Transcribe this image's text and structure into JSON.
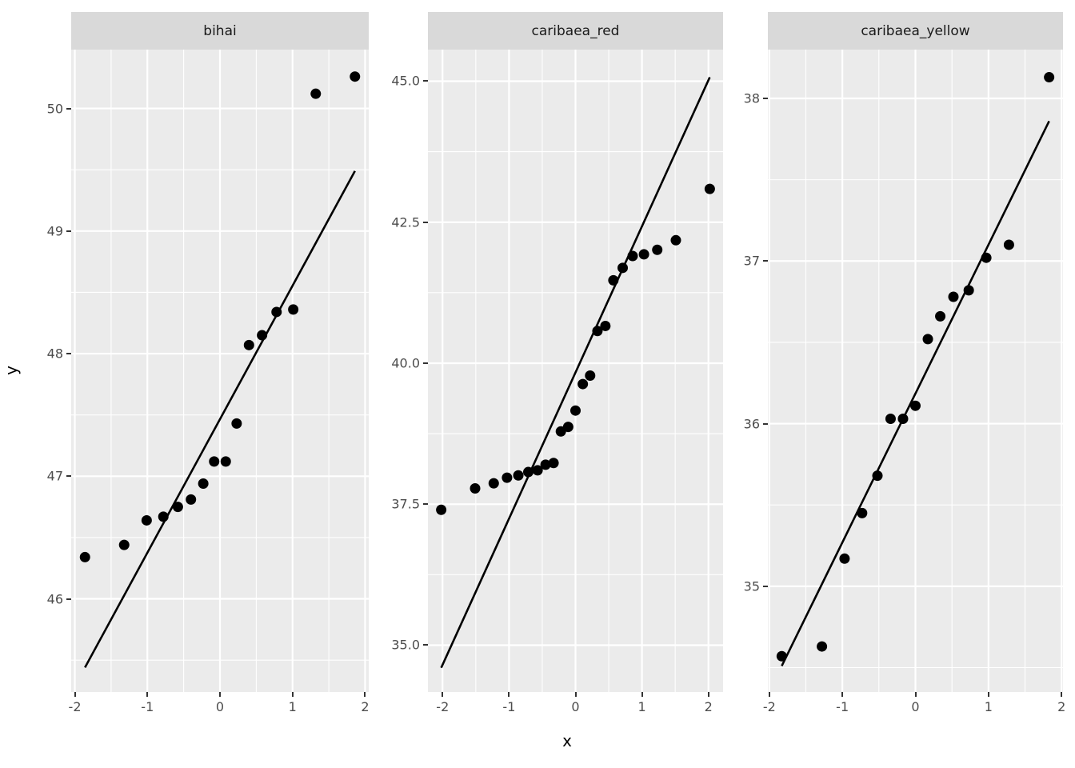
{
  "figure": {
    "x_axis_title": "x",
    "y_axis_title": "y"
  },
  "colors": {
    "background": "#ffffff",
    "panel_background": "#ebebeb",
    "strip_background": "#d9d9d9",
    "grid": "#ffffff",
    "point": "#000000",
    "qq_line": "#000000",
    "tick_label": "#4d4d4d",
    "strip_text": "#1a1a1a",
    "axis_title": "#000000",
    "tick_mark": "#333333"
  },
  "chart_data": [
    {
      "type": "scatter",
      "facet": "bihai",
      "xlabel": "x",
      "ylabel": "y",
      "xlim": [
        -2.05,
        2.05
      ],
      "ylim": [
        45.24,
        50.48
      ],
      "x_ticks": [
        {
          "value": -2,
          "label": "-2"
        },
        {
          "value": -1,
          "label": "-1"
        },
        {
          "value": 0,
          "label": "0"
        },
        {
          "value": 1,
          "label": "1"
        },
        {
          "value": 2,
          "label": "2"
        }
      ],
      "x_ticks_minor": [
        -1.5,
        -0.5,
        0.5,
        1.5
      ],
      "y_ticks": [
        {
          "value": 46,
          "label": "46"
        },
        {
          "value": 47,
          "label": "47"
        },
        {
          "value": 48,
          "label": "48"
        },
        {
          "value": 49,
          "label": "49"
        },
        {
          "value": 50,
          "label": "50"
        }
      ],
      "y_ticks_minor": [
        45.5,
        46.5,
        47.5,
        48.5,
        49.5
      ],
      "points": {
        "x": [
          -1.86,
          -1.32,
          -1.01,
          -0.78,
          -0.58,
          -0.4,
          -0.23,
          -0.08,
          0.08,
          0.23,
          0.4,
          0.58,
          0.78,
          1.01,
          1.32,
          1.86
        ],
        "y": [
          46.34,
          46.44,
          46.64,
          46.67,
          46.75,
          46.81,
          46.94,
          47.12,
          47.12,
          47.43,
          48.07,
          48.15,
          48.34,
          48.36,
          50.12,
          50.26
        ]
      },
      "qq_line": {
        "x1": -1.86,
        "y1": 45.44,
        "x2": 1.86,
        "y2": 49.49
      }
    },
    {
      "type": "scatter",
      "facet": "caribaea_red",
      "xlabel": "x",
      "ylabel": "y",
      "xlim": [
        -2.22,
        2.22
      ],
      "ylim": [
        34.17,
        45.56
      ],
      "x_ticks": [
        {
          "value": -2,
          "label": "-2"
        },
        {
          "value": -1,
          "label": "-1"
        },
        {
          "value": 0,
          "label": "0"
        },
        {
          "value": 1,
          "label": "1"
        },
        {
          "value": 2,
          "label": "2"
        }
      ],
      "x_ticks_minor": [
        -1.5,
        -0.5,
        0.5,
        1.5
      ],
      "y_ticks": [
        {
          "value": 35.0,
          "label": "35.0"
        },
        {
          "value": 37.5,
          "label": "37.5"
        },
        {
          "value": 40.0,
          "label": "40.0"
        },
        {
          "value": 42.5,
          "label": "42.5"
        },
        {
          "value": 45.0,
          "label": "45.0"
        }
      ],
      "y_ticks_minor": [
        36.25,
        38.75,
        41.25,
        43.75
      ],
      "points": {
        "x": [
          -2.02,
          -1.51,
          -1.23,
          -1.03,
          -0.86,
          -0.71,
          -0.57,
          -0.45,
          -0.33,
          -0.22,
          -0.11,
          0,
          0.11,
          0.22,
          0.33,
          0.45,
          0.57,
          0.71,
          0.86,
          1.03,
          1.23,
          1.51,
          2.02
        ],
        "y": [
          37.4,
          37.78,
          37.87,
          37.97,
          38.01,
          38.07,
          38.1,
          38.2,
          38.23,
          38.79,
          38.87,
          39.16,
          39.63,
          39.78,
          40.57,
          40.66,
          41.47,
          41.69,
          41.9,
          41.93,
          42.01,
          42.18,
          43.09
        ]
      },
      "qq_line": {
        "x1": -2.02,
        "y1": 34.6,
        "x2": 2.02,
        "y2": 45.07
      }
    },
    {
      "type": "scatter",
      "facet": "caribaea_yellow",
      "xlabel": "x",
      "ylabel": "y",
      "xlim": [
        -2.02,
        2.02
      ],
      "ylim": [
        34.35,
        38.3
      ],
      "x_ticks": [
        {
          "value": -2,
          "label": "-2"
        },
        {
          "value": -1,
          "label": "-1"
        },
        {
          "value": 0,
          "label": "0"
        },
        {
          "value": 1,
          "label": "1"
        },
        {
          "value": 2,
          "label": "2"
        }
      ],
      "x_ticks_minor": [
        -1.5,
        -0.5,
        0.5,
        1.5
      ],
      "y_ticks": [
        {
          "value": 35,
          "label": "35"
        },
        {
          "value": 36,
          "label": "36"
        },
        {
          "value": 37,
          "label": "37"
        },
        {
          "value": 38,
          "label": "38"
        }
      ],
      "y_ticks_minor": [
        34.5,
        35.5,
        36.5,
        37.5
      ],
      "points": {
        "x": [
          -1.83,
          -1.28,
          -0.97,
          -0.73,
          -0.52,
          -0.34,
          -0.17,
          0,
          0.17,
          0.34,
          0.52,
          0.73,
          0.97,
          1.28,
          1.83
        ],
        "y": [
          34.57,
          34.63,
          35.17,
          35.45,
          35.68,
          36.03,
          36.03,
          36.11,
          36.52,
          36.66,
          36.78,
          36.82,
          37.02,
          37.1,
          38.13
        ]
      },
      "qq_line": {
        "x1": -1.83,
        "y1": 34.51,
        "x2": 1.83,
        "y2": 37.86
      }
    }
  ]
}
